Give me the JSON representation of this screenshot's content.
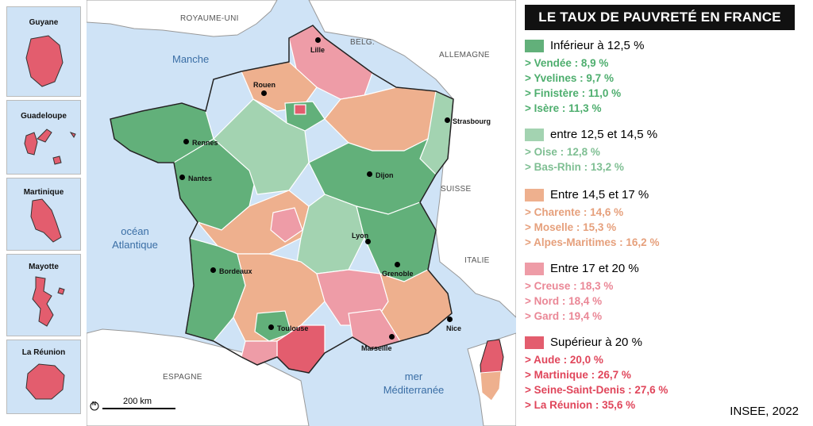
{
  "title": "LE TAUX DE PAUVRETÉ EN FRANCE",
  "source": "INSEE, 2022",
  "colors": {
    "sea": "#cfe3f6",
    "land_foreign": "#ffffff",
    "lt_12_5": "#62b07a",
    "c12_5_14_5": "#a3d3b1",
    "c14_5_17": "#eeb08e",
    "c17_20": "#ee9ca7",
    "gt_20": "#e35d6e"
  },
  "legend": [
    {
      "label": "Inférieur à 12,5 %",
      "color": "#62b07a",
      "text_color": "#4eae6e",
      "items": [
        "> Vendée : 8,9 %",
        "> Yvelines : 9,7 %",
        "> Finistère : 11,0 %",
        "> Isère : 11,3 %"
      ]
    },
    {
      "label": "entre 12,5 et 14,5 %",
      "color": "#a3d3b1",
      "text_color": "#7fbf93",
      "items": [
        "> Oise : 12,8 %",
        "> Bas-Rhin : 13,2 %"
      ]
    },
    {
      "label": "Entre 14,5 et 17 %",
      "color": "#eeb08e",
      "text_color": "#e6a07c",
      "items": [
        "> Charente : 14,6 %",
        "> Moselle : 15,3 %",
        "> Alpes-Maritimes : 16,2 %"
      ]
    },
    {
      "label": "Entre 17 et 20 %",
      "color": "#ee9ca7",
      "text_color": "#ea8796",
      "items": [
        "> Creuse : 18,3 %",
        "> Nord : 18,4 %",
        "> Gard : 19,4 %"
      ]
    },
    {
      "label": "Supérieur à 20 %",
      "color": "#e35d6e",
      "text_color": "#e0465b",
      "items": [
        "> Aude : 20,0 %",
        "> Martinique : 26,7 %",
        "> Seine-Saint-Denis : 27,6 %",
        "> La Réunion : 35,6 %"
      ]
    }
  ],
  "insets": [
    "Guyane",
    "Guadeloupe",
    "Martinique",
    "Mayotte",
    "La Réunion"
  ],
  "countries": {
    "uk": "ROYAUME-UNI",
    "belgium": "BELG.",
    "germany": "ALLEMAGNE",
    "switzerland": "SUISSE",
    "italy": "ITALIE",
    "spain": "ESPAGNE"
  },
  "seas": {
    "manche": "Manche",
    "atlantic_1": "océan",
    "atlantic_2": "Atlantique",
    "med_1": "mer",
    "med_2": "Méditerranée"
  },
  "cities": {
    "lille": "Lille",
    "rouen": "Rouen",
    "strasbourg": "Strasbourg",
    "rennes": "Rennes",
    "nantes": "Nantes",
    "dijon": "Dijon",
    "lyon": "Lyon",
    "bordeaux": "Bordeaux",
    "grenoble": "Grenoble",
    "toulouse": "Toulouse",
    "marseille": "Marseille",
    "nice": "Nice"
  },
  "scale": {
    "label": "200 km",
    "north": "N"
  }
}
